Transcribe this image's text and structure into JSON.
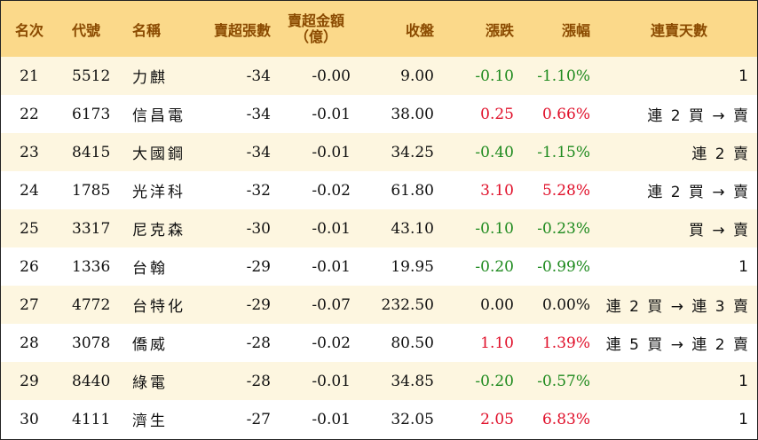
{
  "columns": {
    "rank": "名次",
    "code": "代號",
    "name": "名稱",
    "net_sell_lots": "賣超張數",
    "net_sell_amount": "賣超金額",
    "net_sell_amount_unit": "（億）",
    "close": "收盤",
    "change": "漲跌",
    "change_pct": "漲幅",
    "streak": "連賣天數"
  },
  "rows": [
    {
      "rank": "21",
      "code": "5512",
      "name": "力麒",
      "lots": "-34",
      "amount": "-0.00",
      "close": "9.00",
      "change": "-0.10",
      "pct": "-1.10%",
      "dir": "neg",
      "streak": "1"
    },
    {
      "rank": "22",
      "code": "6173",
      "name": "信昌電",
      "lots": "-34",
      "amount": "-0.01",
      "close": "38.00",
      "change": "0.25",
      "pct": "0.66%",
      "dir": "pos",
      "streak": "連 2 買 → 賣"
    },
    {
      "rank": "23",
      "code": "8415",
      "name": "大國鋼",
      "lots": "-34",
      "amount": "-0.01",
      "close": "34.25",
      "change": "-0.40",
      "pct": "-1.15%",
      "dir": "neg",
      "streak": "連 2 賣"
    },
    {
      "rank": "24",
      "code": "1785",
      "name": "光洋科",
      "lots": "-32",
      "amount": "-0.02",
      "close": "61.80",
      "change": "3.10",
      "pct": "5.28%",
      "dir": "pos",
      "streak": "連 2 買 → 賣"
    },
    {
      "rank": "25",
      "code": "3317",
      "name": "尼克森",
      "lots": "-30",
      "amount": "-0.01",
      "close": "43.10",
      "change": "-0.10",
      "pct": "-0.23%",
      "dir": "neg",
      "streak": "買 → 賣"
    },
    {
      "rank": "26",
      "code": "1336",
      "name": "台翰",
      "lots": "-29",
      "amount": "-0.01",
      "close": "19.95",
      "change": "-0.20",
      "pct": "-0.99%",
      "dir": "neg",
      "streak": "1"
    },
    {
      "rank": "27",
      "code": "4772",
      "name": "台特化",
      "lots": "-29",
      "amount": "-0.07",
      "close": "232.50",
      "change": "0.00",
      "pct": "0.00%",
      "dir": "flat",
      "streak": "連 2 買 → 連 3 賣"
    },
    {
      "rank": "28",
      "code": "3078",
      "name": "僑威",
      "lots": "-28",
      "amount": "-0.02",
      "close": "80.50",
      "change": "1.10",
      "pct": "1.39%",
      "dir": "pos",
      "streak": "連 5 買 → 連 2 賣"
    },
    {
      "rank": "29",
      "code": "8440",
      "name": "綠電",
      "lots": "-28",
      "amount": "-0.01",
      "close": "34.85",
      "change": "-0.20",
      "pct": "-0.57%",
      "dir": "neg",
      "streak": "1"
    },
    {
      "rank": "30",
      "code": "4111",
      "name": "濟生",
      "lots": "-27",
      "amount": "-0.01",
      "close": "32.05",
      "change": "2.05",
      "pct": "6.83%",
      "dir": "pos",
      "streak": "1"
    }
  ]
}
